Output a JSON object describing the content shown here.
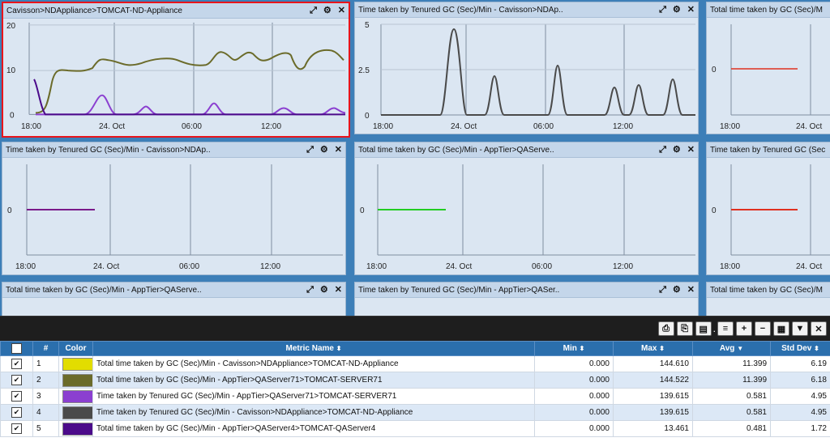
{
  "panels": [
    {
      "title": "Cavisson>NDAppliance>TOMCAT-ND-Appliance",
      "yticks": [
        "20",
        "10",
        "0"
      ],
      "xticks": [
        "18:00",
        "24. Oct",
        "06:00",
        "12:00"
      ]
    },
    {
      "title": "Time taken by Tenured GC (Sec)/Min - Cavisson>NDAp..",
      "yticks": [
        "5",
        "2.5",
        "0"
      ],
      "xticks": [
        "18:00",
        "24. Oct",
        "06:00",
        "12:00"
      ]
    },
    {
      "title": "Total time taken by GC (Sec)/M",
      "yticks": [
        "0"
      ],
      "xticks": [
        "18:00",
        "24. Oct"
      ]
    },
    {
      "title": "Time taken by Tenured GC (Sec)/Min - Cavisson>NDAp..",
      "yticks": [
        "0"
      ],
      "xticks": [
        "18:00",
        "24. Oct",
        "06:00",
        "12:00"
      ]
    },
    {
      "title": "Total time taken by GC (Sec)/Min - AppTier>QAServe..",
      "yticks": [
        "0"
      ],
      "xticks": [
        "18:00",
        "24. Oct",
        "06:00",
        "12:00"
      ]
    },
    {
      "title": "Time taken by Tenured GC (Sec",
      "yticks": [
        "0"
      ],
      "xticks": [
        "18:00",
        "24. Oct"
      ]
    },
    {
      "title": "Total time taken by GC (Sec)/Min - AppTier>QAServe..",
      "yticks": [],
      "xticks": []
    },
    {
      "title": "Time taken by Tenured GC (Sec)/Min - AppTier>QASer..",
      "yticks": [],
      "xticks": []
    },
    {
      "title": "Total time taken by GC (Sec)/M",
      "yticks": [],
      "xticks": []
    }
  ],
  "panel_icons": {
    "expand": "expand-icon",
    "settings": "gear-icon",
    "close": "close-icon"
  },
  "colors": {
    "yellow": "#e2dd00",
    "olive": "#6b6b2a",
    "purple": "#8b3fd0",
    "darkgray": "#4a4a4a",
    "indigo": "#4b0a8a",
    "red": "#e03020",
    "green": "#22cc22",
    "violet": "#7a1a8a",
    "selected_border": "#e8141b"
  },
  "toolbar": {
    "icons": [
      "pdf-icon",
      "pdf-icon",
      "document-icon",
      "menu-icon",
      "plus-icon",
      "minus-icon",
      "grid-icon",
      "filter-icon",
      "close-icon"
    ],
    "glyphs": [
      "⎙",
      "⎘",
      "▤",
      "≡",
      "+",
      "−",
      "▦",
      "▼",
      "✕"
    ]
  },
  "table": {
    "headers": {
      "num": "#",
      "color": "Color",
      "metric": "Metric Name",
      "min": "Min",
      "max": "Max",
      "avg": "Avg",
      "std": "Std Dev"
    },
    "rows": [
      {
        "n": "1",
        "color": "#e2dd00",
        "metric": "Total time taken by GC (Sec)/Min - Cavisson>NDAppliance>TOMCAT-ND-Appliance",
        "min": "0.000",
        "max": "144.610",
        "avg": "11.399",
        "std": "6.19"
      },
      {
        "n": "2",
        "color": "#6b6b2a",
        "metric": "Total time taken by GC (Sec)/Min - AppTier>QAServer71>TOMCAT-SERVER71",
        "min": "0.000",
        "max": "144.522",
        "avg": "11.399",
        "std": "6.18"
      },
      {
        "n": "3",
        "color": "#8b3fd0",
        "metric": "Time taken by Tenured GC (Sec)/Min - AppTier>QAServer71>TOMCAT-SERVER71",
        "min": "0.000",
        "max": "139.615",
        "avg": "0.581",
        "std": "4.95"
      },
      {
        "n": "4",
        "color": "#4a4a4a",
        "metric": "Time taken by Tenured GC (Sec)/Min - Cavisson>NDAppliance>TOMCAT-ND-Appliance",
        "min": "0.000",
        "max": "139.615",
        "avg": "0.581",
        "std": "4.95"
      },
      {
        "n": "5",
        "color": "#4b0a8a",
        "metric": "Total time taken by GC (Sec)/Min - AppTier>QAServer4>TOMCAT-QAServer4",
        "min": "0.000",
        "max": "13.461",
        "avg": "0.481",
        "std": "1.72"
      }
    ]
  }
}
